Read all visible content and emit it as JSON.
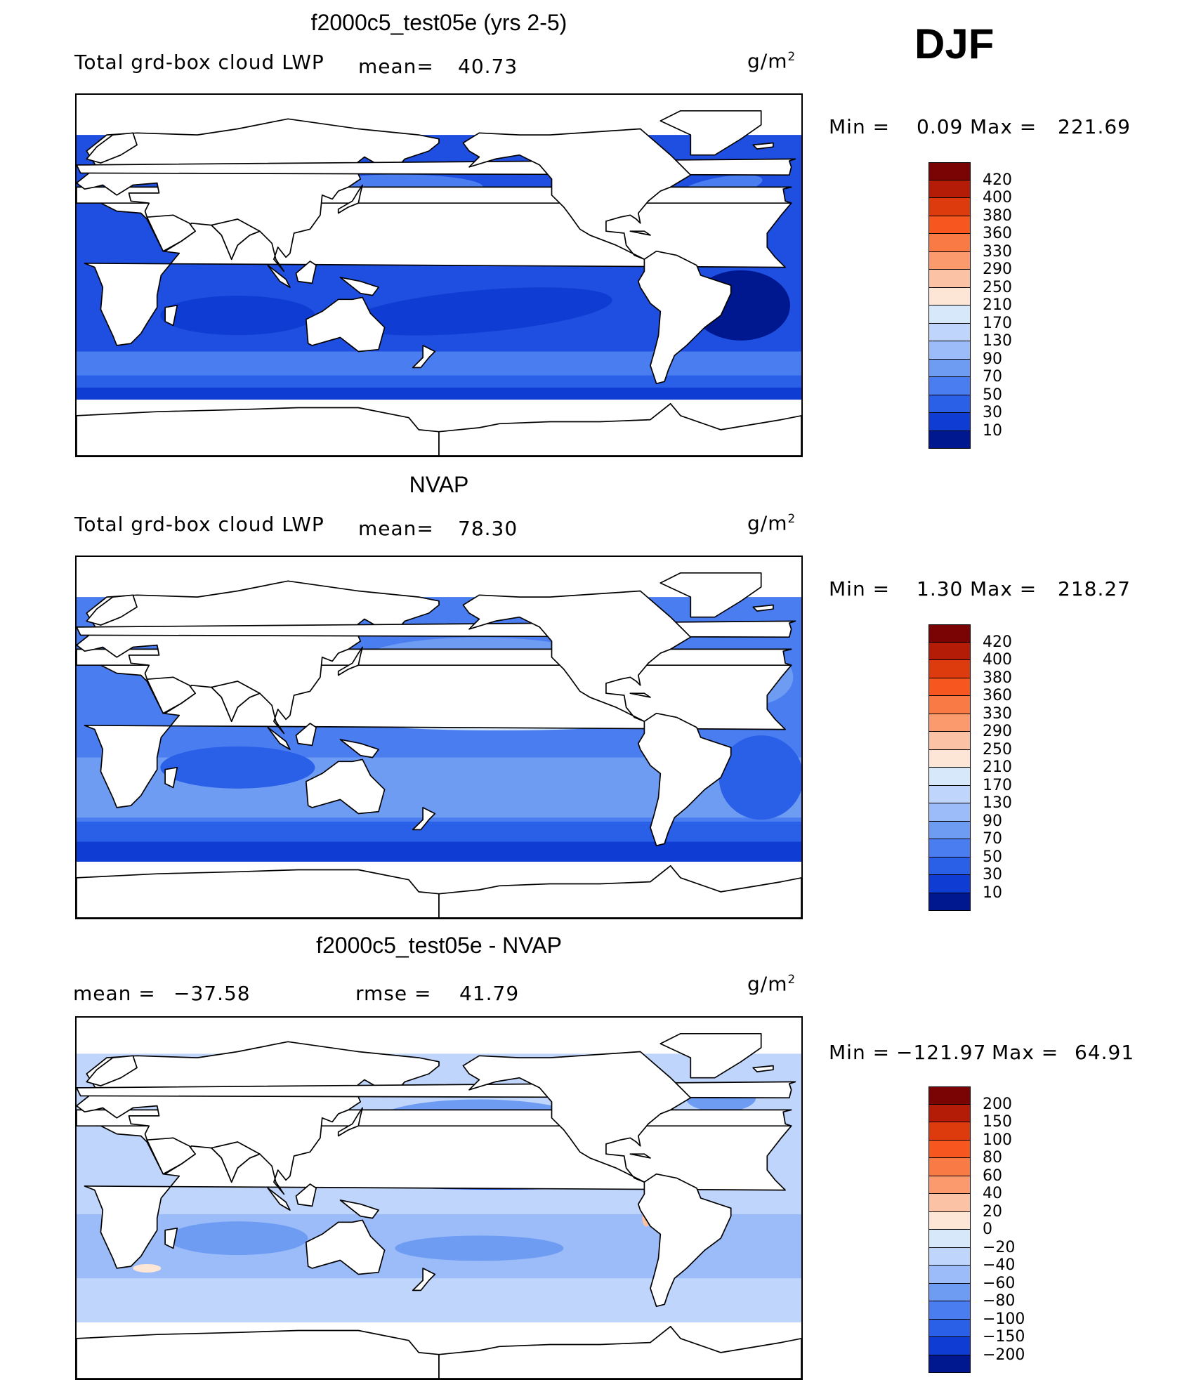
{
  "season": "DJF",
  "panels": [
    {
      "title": "f2000c5_test05e (yrs 2-5)",
      "left_label": "Total grd-box cloud LWP",
      "mean_label": "mean=",
      "mean_value": "40.73",
      "units": "g/m",
      "units_sup": "2",
      "min_label": "Min =",
      "min_value": "0.09",
      "max_label": "Max =",
      "max_value": "221.69",
      "colorbar": {
        "labels": [
          "420",
          "400",
          "380",
          "360",
          "330",
          "290",
          "250",
          "210",
          "170",
          "130",
          "90",
          "70",
          "50",
          "30",
          "10"
        ],
        "colors": [
          "#7a0403",
          "#b51c07",
          "#dd3a0d",
          "#f8561f",
          "#fa7a45",
          "#fb9a6d",
          "#fcc2a5",
          "#fde6d6",
          "#d7e8fb",
          "#bfd5fb",
          "#9bbcf9",
          "#6f9cf3",
          "#4a7df0",
          "#2a5fe8",
          "#0f3dd3",
          "#00188f"
        ]
      },
      "map_style": "model"
    },
    {
      "title": "NVAP",
      "left_label": "Total grd-box cloud LWP",
      "mean_label": "mean=",
      "mean_value": "78.30",
      "units": "g/m",
      "units_sup": "2",
      "min_label": "Min =",
      "min_value": "1.30",
      "max_label": "Max =",
      "max_value": "218.27",
      "colorbar": {
        "labels": [
          "420",
          "400",
          "380",
          "360",
          "330",
          "290",
          "250",
          "210",
          "170",
          "130",
          "90",
          "70",
          "50",
          "30",
          "10"
        ],
        "colors": [
          "#7a0403",
          "#b51c07",
          "#dd3a0d",
          "#f8561f",
          "#fa7a45",
          "#fb9a6d",
          "#fcc2a5",
          "#fde6d6",
          "#d7e8fb",
          "#bfd5fb",
          "#9bbcf9",
          "#6f9cf3",
          "#4a7df0",
          "#2a5fe8",
          "#0f3dd3",
          "#00188f"
        ]
      },
      "map_style": "obs"
    },
    {
      "title": "f2000c5_test05e - NVAP",
      "left_label": "mean = ",
      "mean_label": "",
      "mean_value": "−37.58",
      "rmse_label": "rmse =",
      "rmse_value": "41.79",
      "units": "g/m",
      "units_sup": "2",
      "min_label": "Min =",
      "min_value": "−121.97",
      "max_label": "Max =",
      "max_value": "64.91",
      "colorbar": {
        "labels": [
          "200",
          "150",
          "100",
          "80",
          "60",
          "40",
          "20",
          "0",
          "−20",
          "−40",
          "−60",
          "−80",
          "−100",
          "−150",
          "−200"
        ],
        "colors": [
          "#7a0403",
          "#b51c07",
          "#dd3a0d",
          "#f8561f",
          "#fa7a45",
          "#fb9a6d",
          "#fcc2a5",
          "#fde6d6",
          "#d7e8fb",
          "#bfd5fb",
          "#9bbcf9",
          "#6f9cf3",
          "#4a7df0",
          "#2a5fe8",
          "#0f3dd3",
          "#00188f"
        ]
      },
      "map_style": "diff"
    }
  ]
}
